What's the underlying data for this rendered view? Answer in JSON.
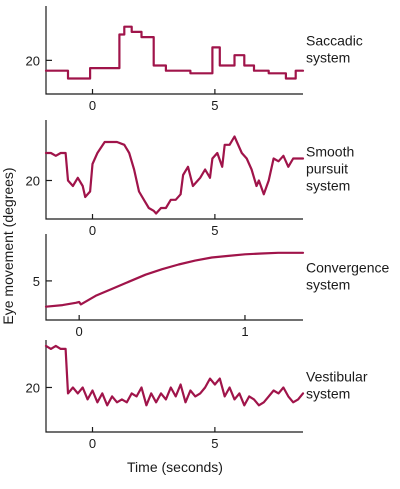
{
  "trace_color": "#a0144a",
  "axis_color": "#1a1a1a",
  "ylabel": "Eye movement (degrees)",
  "xlabel": "Time (seconds)",
  "chart_data": [
    {
      "type": "line",
      "name": "Saccadic system",
      "label_lines": [
        "Saccadic",
        "system"
      ],
      "xlim": [
        -1.9,
        8.6
      ],
      "ylim": [
        7,
        41
      ],
      "xticks": [
        0,
        5
      ],
      "yticks": [
        20
      ],
      "x": [
        -1.9,
        -1,
        -1,
        -0.1,
        -0.1,
        1.1,
        1.1,
        1.3,
        1.3,
        1.6,
        1.6,
        2.0,
        2.0,
        2.5,
        2.5,
        3.0,
        3.0,
        4.0,
        4.0,
        4.9,
        4.9,
        5.2,
        5.2,
        5.8,
        5.8,
        6.2,
        6.2,
        6.6,
        6.6,
        7.2,
        7.2,
        7.9,
        7.9,
        8.3,
        8.3,
        8.6
      ],
      "y": [
        16,
        16,
        13,
        13,
        17,
        17,
        30,
        30,
        33,
        33,
        31,
        31,
        29,
        29,
        18,
        18,
        16,
        16,
        15,
        15,
        25,
        25,
        18,
        18,
        22,
        22,
        18,
        18,
        16,
        16,
        15,
        15,
        13,
        13,
        16,
        16
      ]
    },
    {
      "type": "line",
      "name": "Smooth pursuit system",
      "label_lines": [
        "Smooth",
        "pursuit",
        "system"
      ],
      "xlim": [
        -1.9,
        8.6
      ],
      "ylim": [
        6,
        42
      ],
      "xticks": [
        0,
        5
      ],
      "yticks": [
        20
      ],
      "x": [
        -1.9,
        -1.7,
        -1.5,
        -1.3,
        -1.1,
        -1.0,
        -0.8,
        -0.6,
        -0.4,
        -0.3,
        -0.1,
        0.0,
        0.2,
        0.5,
        0.8,
        1.0,
        1.3,
        1.5,
        1.7,
        1.9,
        2.1,
        2.3,
        2.5,
        2.6,
        2.8,
        3.0,
        3.2,
        3.4,
        3.6,
        3.7,
        3.9,
        4.1,
        4.3,
        4.4,
        4.6,
        4.8,
        4.9,
        5.1,
        5.3,
        5.4,
        5.6,
        5.8,
        5.9,
        6.1,
        6.3,
        6.5,
        6.7,
        6.8,
        7.0,
        7.2,
        7.4,
        7.6,
        7.8,
        8.0,
        8.2,
        8.4,
        8.6
      ],
      "y": [
        30,
        30,
        29,
        30,
        30,
        20,
        18,
        21,
        18,
        14,
        16,
        26,
        30,
        34,
        34,
        34,
        33,
        30,
        24,
        16,
        13,
        10,
        9,
        8,
        10,
        10,
        13,
        13,
        15,
        22,
        25,
        18,
        20,
        21,
        24,
        21,
        28,
        30,
        25,
        33,
        33,
        36,
        34,
        30,
        28,
        24,
        18,
        20,
        15,
        20,
        28,
        27,
        29,
        25,
        28,
        28,
        28
      ]
    },
    {
      "type": "line",
      "name": "Convergence system",
      "label_lines": [
        "Convergence",
        "system"
      ],
      "xlim": [
        -0.2,
        1.35
      ],
      "ylim": [
        0,
        11
      ],
      "xticks": [
        0,
        1
      ],
      "yticks": [
        5
      ],
      "x": [
        -0.2,
        -0.1,
        -0.02,
        0.0,
        0.01,
        0.1,
        0.2,
        0.3,
        0.4,
        0.5,
        0.6,
        0.7,
        0.8,
        0.9,
        1.0,
        1.1,
        1.2,
        1.35
      ],
      "y": [
        1.7,
        1.9,
        2.2,
        2.3,
        2.0,
        3.1,
        4.0,
        4.9,
        5.8,
        6.5,
        7.1,
        7.6,
        8.0,
        8.2,
        8.4,
        8.5,
        8.6,
        8.6
      ]
    },
    {
      "type": "line",
      "name": "Vestibular system",
      "label_lines": [
        "Vestibular",
        "system"
      ],
      "xlim": [
        -1.9,
        8.6
      ],
      "ylim": [
        5,
        36
      ],
      "xticks": [
        0,
        5
      ],
      "yticks": [
        20
      ],
      "x": [
        -1.9,
        -1.7,
        -1.5,
        -1.3,
        -1.1,
        -1.0,
        -0.8,
        -0.6,
        -0.4,
        -0.2,
        0.0,
        0.2,
        0.4,
        0.6,
        0.8,
        1.0,
        1.2,
        1.4,
        1.6,
        1.8,
        2.0,
        2.2,
        2.4,
        2.6,
        2.8,
        3.0,
        3.2,
        3.4,
        3.6,
        3.8,
        4.0,
        4.2,
        4.4,
        4.6,
        4.8,
        5.0,
        5.2,
        5.4,
        5.6,
        5.8,
        6.0,
        6.2,
        6.4,
        6.6,
        6.8,
        7.0,
        7.2,
        7.4,
        7.6,
        7.8,
        8.0,
        8.2,
        8.4,
        8.6
      ],
      "y": [
        34,
        33,
        34,
        33,
        33,
        18,
        20,
        18,
        20,
        16,
        19,
        15,
        18,
        14,
        17,
        15,
        16,
        15,
        18,
        17,
        20,
        14,
        18,
        15,
        18,
        16,
        20,
        17,
        21,
        15,
        19,
        17,
        18,
        20,
        23,
        21,
        23,
        17,
        20,
        16,
        18,
        14,
        17,
        16,
        14,
        15,
        17,
        19,
        18,
        20,
        17,
        15,
        16,
        18
      ]
    }
  ]
}
